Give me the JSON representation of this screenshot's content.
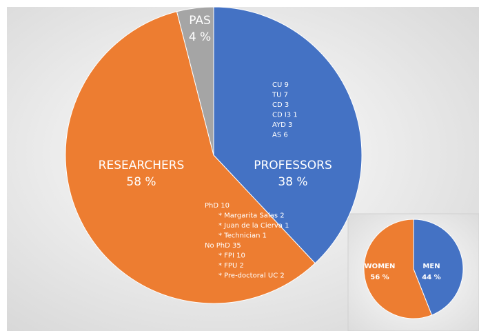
{
  "chart_data": [
    {
      "type": "pie",
      "categories": [
        "PROFESSORS",
        "RESEARCHERS",
        "PAS"
      ],
      "values": [
        38,
        58,
        4
      ],
      "value_labels": [
        "38 %",
        "58 %",
        "4 %"
      ],
      "colors": [
        "#4472c4",
        "#ed7d31",
        "#a5a5a5"
      ],
      "slice_notes": [
        [
          "CU 9",
          "TU 7",
          "CD 3",
          "CD I3 1",
          "AYD 3",
          "AS 6"
        ],
        [
          "PhD 10",
          "* Margarita Salas 2",
          "* Juan de la Cierva 1",
          "* Technician 1",
          "No PhD 35",
          "* FPI 10",
          "* FPU 2",
          "* Pre-doctoral UC 2"
        ],
        []
      ]
    },
    {
      "type": "pie",
      "categories": [
        "MEN",
        "WOMEN"
      ],
      "values": [
        44,
        56
      ],
      "value_labels": [
        "44 %",
        "56 %"
      ],
      "colors": [
        "#4472c4",
        "#ed7d31"
      ]
    }
  ]
}
